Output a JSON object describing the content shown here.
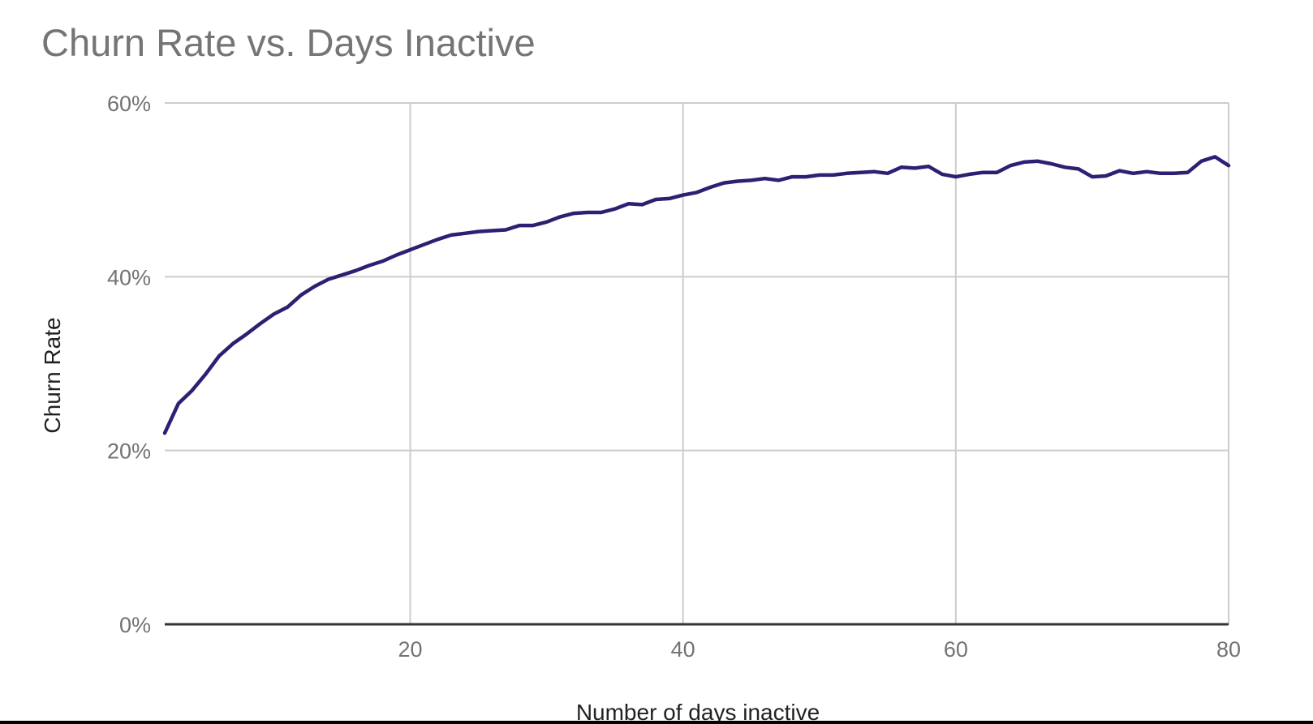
{
  "chart_data": {
    "type": "line",
    "title": "Churn Rate vs. Days Inactive",
    "xlabel": "Number of days inactive",
    "ylabel": "Churn Rate",
    "xlim": [
      2,
      80
    ],
    "ylim": [
      0,
      60
    ],
    "x_ticks": [
      20,
      40,
      60,
      80
    ],
    "x_tick_labels": [
      "20",
      "40",
      "60",
      "80"
    ],
    "y_ticks": [
      0,
      20,
      40,
      60
    ],
    "y_tick_labels": [
      "0%",
      "20%",
      "40%",
      "60%"
    ],
    "grid": true,
    "legend": "none",
    "series": [
      {
        "color": "#2e1f73",
        "x": [
          2,
          3,
          4,
          5,
          6,
          7,
          8,
          9,
          10,
          11,
          12,
          13,
          14,
          15,
          16,
          17,
          18,
          19,
          20,
          21,
          22,
          23,
          24,
          25,
          26,
          27,
          28,
          29,
          30,
          31,
          32,
          33,
          34,
          35,
          36,
          37,
          38,
          39,
          40,
          41,
          42,
          43,
          44,
          45,
          46,
          47,
          48,
          49,
          50,
          51,
          52,
          53,
          54,
          55,
          56,
          57,
          58,
          59,
          60,
          61,
          62,
          63,
          64,
          65,
          66,
          67,
          68,
          69,
          70,
          71,
          72,
          73,
          74,
          75,
          76,
          77,
          78,
          79,
          80
        ],
        "values": [
          22.0,
          25.4,
          26.9,
          28.8,
          30.9,
          32.3,
          33.4,
          34.6,
          35.7,
          36.5,
          37.9,
          38.9,
          39.7,
          40.2,
          40.7,
          41.3,
          41.8,
          42.5,
          43.1,
          43.7,
          44.3,
          44.8,
          45.0,
          45.2,
          45.3,
          45.4,
          45.9,
          45.9,
          46.3,
          46.9,
          47.3,
          47.4,
          47.4,
          47.8,
          48.4,
          48.3,
          48.9,
          49.0,
          49.4,
          49.7,
          50.3,
          50.8,
          51.0,
          51.1,
          51.3,
          51.1,
          51.5,
          51.5,
          51.7,
          51.7,
          51.9,
          52.0,
          52.1,
          51.9,
          52.6,
          52.5,
          52.7,
          51.8,
          51.5,
          51.8,
          52.0,
          52.0,
          52.8,
          53.2,
          53.3,
          53.0,
          52.6,
          52.4,
          51.5,
          51.6,
          52.2,
          51.9,
          52.1,
          51.9,
          51.9,
          52.0,
          53.3,
          53.8,
          52.8
        ]
      }
    ]
  }
}
